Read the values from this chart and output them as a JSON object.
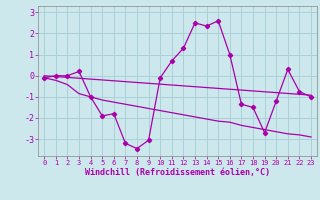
{
  "xlabel": "Windchill (Refroidissement éolien,°C)",
  "background_color": "#cce8ec",
  "grid_color": "#aad0d8",
  "line_color": "#aa00aa",
  "spine_color": "#888888",
  "x_values": [
    0,
    1,
    2,
    3,
    4,
    5,
    6,
    7,
    8,
    9,
    10,
    11,
    12,
    13,
    14,
    15,
    16,
    17,
    18,
    19,
    20,
    21,
    22,
    23
  ],
  "y_main": [
    -0.1,
    0.0,
    0.0,
    0.2,
    -1.0,
    -1.9,
    -1.8,
    -3.2,
    -3.45,
    -3.05,
    -0.1,
    0.7,
    1.3,
    2.5,
    2.35,
    2.6,
    1.0,
    -1.35,
    -1.5,
    -2.7,
    -1.2,
    0.3,
    -0.75,
    -1.0
  ],
  "y_line1": [
    0.0,
    -0.04,
    -0.08,
    -0.12,
    -0.16,
    -0.2,
    -0.24,
    -0.28,
    -0.32,
    -0.36,
    -0.4,
    -0.44,
    -0.48,
    -0.52,
    -0.56,
    -0.6,
    -0.64,
    -0.68,
    -0.72,
    -0.76,
    -0.8,
    -0.84,
    -0.88,
    -0.92
  ],
  "y_line2": [
    -0.1,
    -0.22,
    -0.42,
    -0.85,
    -1.0,
    -1.15,
    -1.25,
    -1.35,
    -1.45,
    -1.55,
    -1.65,
    -1.75,
    -1.85,
    -1.95,
    -2.05,
    -2.15,
    -2.2,
    -2.35,
    -2.45,
    -2.55,
    -2.65,
    -2.75,
    -2.8,
    -2.9
  ],
  "ylim": [
    -3.8,
    3.3
  ],
  "yticks": [
    -3,
    -2,
    -1,
    0,
    1,
    2,
    3
  ],
  "xlim": [
    -0.5,
    23.5
  ]
}
